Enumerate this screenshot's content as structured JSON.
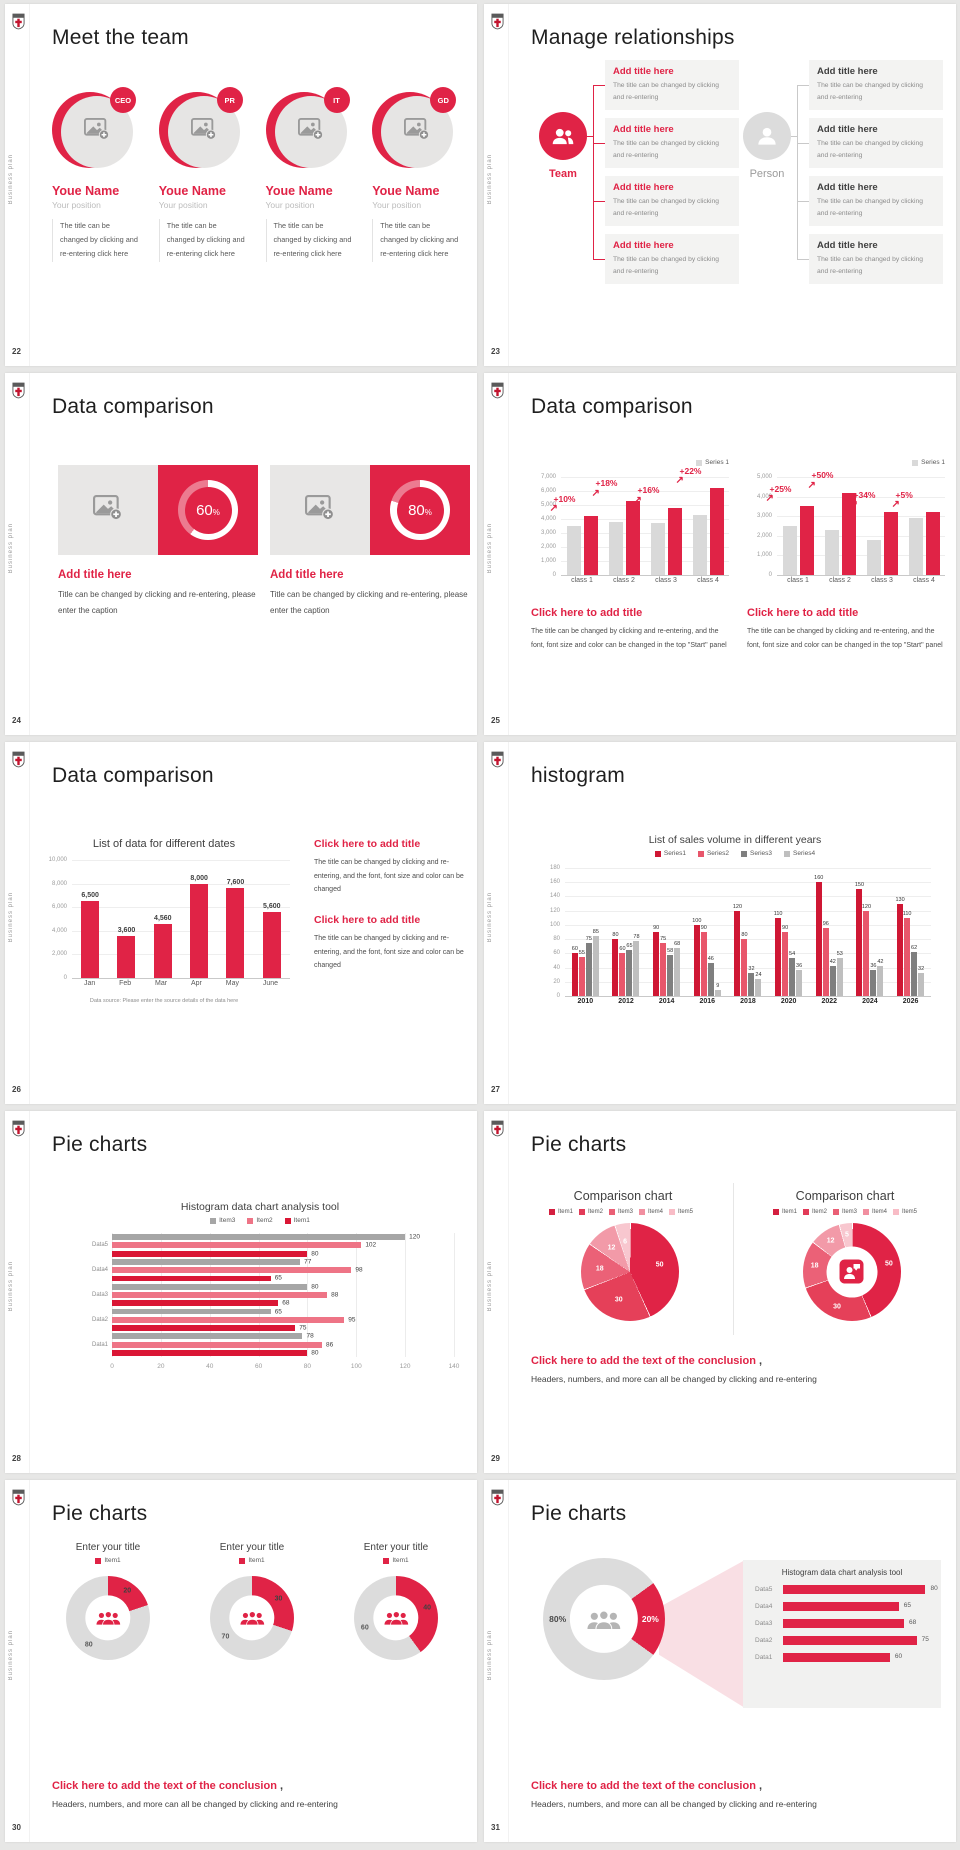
{
  "brand": {
    "vertical_text": "Business plan"
  },
  "icons": {
    "growth_arrow": "↗"
  },
  "theme": {
    "accent": "#e02346",
    "accent_dark": "#cf1734",
    "pink": "#ee7486",
    "gray_bar": "#d9d9d9",
    "gray_dark": "#7f7f7f",
    "gray_mid": "#a6a6a6",
    "panel": "#f1f1f0",
    "beam": "#f9dfe4"
  },
  "slides": [
    {
      "page": "22",
      "title": "Meet the team",
      "members": [
        {
          "badge": "CEO",
          "name": "Youe Name",
          "position": "Your position",
          "desc": "The title can be changed by clicking and re-entering click here"
        },
        {
          "badge": "PR",
          "name": "Youe Name",
          "position": "Your position",
          "desc": "The title can be changed by clicking and re-entering click here"
        },
        {
          "badge": "IT",
          "name": "Youe Name",
          "position": "Your position",
          "desc": "The title can be changed by clicking and re-entering click here"
        },
        {
          "badge": "GD",
          "name": "Youe Name",
          "position": "Your position",
          "desc": "The title can be changed by clicking and re-entering click here"
        }
      ]
    },
    {
      "page": "23",
      "title": "Manage relationships",
      "team_label": "Team",
      "person_label": "Person",
      "box_title": "Add title here",
      "box_text": "The title can be changed by clicking and re-entering"
    },
    {
      "page": "24",
      "title": "Data comparison",
      "panels": [
        {
          "percent": "60",
          "unit": "%",
          "title": "Add title here",
          "caption": "Title can be changed by clicking and re-entering, please enter the caption"
        },
        {
          "percent": "80",
          "unit": "%",
          "title": "Add title here",
          "caption": "Title can be changed by clicking and re-entering, please enter the caption"
        }
      ]
    },
    {
      "page": "25",
      "title": "Data comparison",
      "caption_title": "Click here to add title",
      "caption": "The title can be changed by clicking and re-entering, and the font, font size and color can be changed in the top \"Start\" panel"
    },
    {
      "page": "26",
      "title": "Data comparison",
      "blocks": [
        {
          "title": "Click here to add title",
          "text": "The title can be changed by clicking and re-entering, and the font, font size and color can be changed"
        },
        {
          "title": "Click here to add title",
          "text": "The title can be changed by clicking and re-entering, and the font, font size and color can be changed"
        }
      ]
    },
    {
      "page": "27",
      "title": "histogram"
    },
    {
      "page": "28",
      "title": "Pie charts"
    },
    {
      "page": "29",
      "title": "Pie charts",
      "conclusion_title": "Click here to add the text of the conclusion",
      "conclusion_comma": ",",
      "conclusion_text": "Headers, numbers, and more can all be changed by clicking and re-entering"
    },
    {
      "page": "30",
      "title": "Pie charts",
      "conclusion_title": "Click here to add the text of the conclusion",
      "conclusion_comma": ",",
      "conclusion_text": "Headers, numbers, and more can all be changed by clicking and re-entering"
    },
    {
      "page": "31",
      "title": "Pie charts",
      "conclusion_title": "Click here to add the text of the conclusion",
      "conclusion_comma": ",",
      "conclusion_text": "Headers, numbers, and more can all be changed by clicking and re-entering"
    }
  ],
  "chart_data": [
    {
      "type": "bar",
      "slide": "25-left",
      "title": "",
      "legend": [
        {
          "label": "Series 1",
          "color": "#d9d9d9"
        }
      ],
      "categories": [
        "class 1",
        "class 2",
        "class 3",
        "class 4"
      ],
      "series": [
        {
          "name": "base",
          "color": "#d9d9d9",
          "values": [
            3500,
            3800,
            3700,
            4300
          ]
        },
        {
          "name": "Series 1",
          "color": "#e02346",
          "values": [
            4200,
            5300,
            4800,
            6200
          ]
        }
      ],
      "growth": [
        "+10%",
        "+18%",
        "+16%",
        "+22%"
      ],
      "ylim": [
        0,
        7000
      ],
      "yticks": [
        "7,000",
        "6,000",
        "5,000",
        "4,000",
        "3,000",
        "2,000",
        "1,000",
        "0"
      ]
    },
    {
      "type": "bar",
      "slide": "25-right",
      "title": "",
      "legend": [
        {
          "label": "Series 1",
          "color": "#d9d9d9"
        }
      ],
      "categories": [
        "class 1",
        "class 2",
        "class 3",
        "class 4"
      ],
      "series": [
        {
          "name": "base",
          "color": "#d9d9d9",
          "values": [
            2500,
            2300,
            1800,
            2900
          ]
        },
        {
          "name": "Series 1",
          "color": "#e02346",
          "values": [
            3500,
            4200,
            3200,
            3200
          ]
        }
      ],
      "growth": [
        "+25%",
        "+50%",
        "+34%",
        "+5%"
      ],
      "ylim": [
        0,
        5000
      ],
      "yticks": [
        "5,000",
        "4,000",
        "3,000",
        "2,000",
        "1,000",
        "0"
      ]
    },
    {
      "type": "bar",
      "slide": "26",
      "title": "List of data for different dates",
      "categories": [
        "Jan",
        "Feb",
        "Mar",
        "Apr",
        "May",
        "June"
      ],
      "series": [
        {
          "name": "data",
          "color": "#e02346",
          "values": [
            6500,
            3600,
            4560,
            8000,
            7600,
            5600
          ],
          "labels": [
            "6,500",
            "3,600",
            "4,560",
            "8,000",
            "7,600",
            "5,600"
          ]
        }
      ],
      "ylim": [
        0,
        10000
      ],
      "yticks": [
        "10,000",
        "8,000",
        "6,000",
        "4,000",
        "2,000",
        "0"
      ],
      "footnote": "Data source: Please enter the source details of the data here"
    },
    {
      "type": "bar",
      "slide": "27",
      "title": "List of sales volume in different years",
      "legend": [
        {
          "label": "Series1",
          "color": "#cf1734"
        },
        {
          "label": "Series2",
          "color": "#e8566b"
        },
        {
          "label": "Series3",
          "color": "#7f7f7f"
        },
        {
          "label": "Series4",
          "color": "#bfbfbf"
        }
      ],
      "categories": [
        "2010",
        "2012",
        "2014",
        "2016",
        "2018",
        "2020",
        "2022",
        "2024",
        "2026"
      ],
      "series": [
        {
          "name": "Series1",
          "color": "#cf1734",
          "values": [
            60,
            80,
            90,
            100,
            120,
            110,
            160,
            150,
            130
          ]
        },
        {
          "name": "Series2",
          "color": "#e8566b",
          "values": [
            55,
            60,
            75,
            90,
            80,
            90,
            96,
            120,
            110
          ]
        },
        {
          "name": "Series3",
          "color": "#7f7f7f",
          "values": [
            75,
            65,
            58,
            46,
            32,
            54,
            42,
            36,
            62
          ]
        },
        {
          "name": "Series4",
          "color": "#bfbfbf",
          "values": [
            85,
            78,
            68,
            9,
            24,
            36,
            53,
            42,
            32
          ]
        }
      ],
      "show_values": true,
      "ylim": [
        0,
        180
      ],
      "yticks": [
        "180",
        "160",
        "140",
        "120",
        "100",
        "80",
        "60",
        "40",
        "20",
        "0"
      ]
    },
    {
      "type": "hbar",
      "slide": "28",
      "title": "Histogram data chart analysis tool",
      "legend": [
        {
          "label": "Item3",
          "color": "#a6a6a6"
        },
        {
          "label": "Item2",
          "color": "#ee7486"
        },
        {
          "label": "Item1",
          "color": "#da1635"
        }
      ],
      "series_colors": [
        "#a6a6a6",
        "#ee7486",
        "#da1635"
      ],
      "rows": [
        {
          "label": "Data5",
          "values": [
            120,
            102,
            80
          ]
        },
        {
          "label": "Data4",
          "values": [
            77,
            98,
            65
          ]
        },
        {
          "label": "Data3",
          "values": [
            80,
            88,
            68
          ]
        },
        {
          "label": "Data2",
          "values": [
            65,
            95,
            75
          ]
        },
        {
          "label": "Data1",
          "values": [
            78,
            86,
            80
          ]
        }
      ],
      "xlim": [
        0,
        140
      ],
      "xticks": [
        "0",
        "20",
        "40",
        "60",
        "80",
        "100",
        "120",
        "140"
      ]
    },
    {
      "type": "pie",
      "slide": "29-left",
      "title": "Comparison chart",
      "legend": [
        {
          "label": "Item1",
          "color": "#d41f3f"
        },
        {
          "label": "Item2",
          "color": "#e23b58"
        },
        {
          "label": "Item3",
          "color": "#ea5f75"
        },
        {
          "label": "Item4",
          "color": "#f18fa0"
        },
        {
          "label": "Item5",
          "color": "#f8bcc6"
        }
      ],
      "values": [
        50,
        30,
        18,
        12,
        6
      ],
      "labels": [
        "50",
        "30",
        "18",
        "12",
        "6"
      ],
      "colors": [
        "#e02346",
        "#e54059",
        "#eb6177",
        "#f29aa8",
        "#f8c7cf"
      ],
      "separators": true,
      "label_r": 62
    },
    {
      "type": "donut",
      "slide": "29-right",
      "title": "Comparison chart",
      "legend": [
        {
          "label": "Item1",
          "color": "#d41f3f"
        },
        {
          "label": "Item2",
          "color": "#e23b58"
        },
        {
          "label": "Item3",
          "color": "#ea5f75"
        },
        {
          "label": "Item4",
          "color": "#f18fa0"
        },
        {
          "label": "Item5",
          "color": "#f8bcc6"
        }
      ],
      "values": [
        50,
        30,
        18,
        12,
        5
      ],
      "labels": [
        "50",
        "30",
        "18",
        "12",
        "5"
      ],
      "colors": [
        "#e02346",
        "#e54059",
        "#eb6177",
        "#f29aa8",
        "#f8c7cf"
      ],
      "separators": true,
      "label_r": 77,
      "hole": 52,
      "center_icon": "person-chat"
    },
    {
      "type": "donut",
      "slide": "30-1",
      "title": "Enter your title",
      "legend": [
        {
          "label": "Item1",
          "color": "#e02346"
        }
      ],
      "values": [
        20,
        80
      ],
      "labels": [
        "20",
        "80"
      ],
      "colors": [
        "#e02346",
        "#dcdcdc"
      ],
      "label_colors": [
        "#404040",
        "#595959"
      ],
      "label_r": 78,
      "hole": 54,
      "center_icon": "team-red"
    },
    {
      "type": "donut",
      "slide": "30-2",
      "title": "Enter your title",
      "legend": [
        {
          "label": "Item1",
          "color": "#e02346"
        }
      ],
      "values": [
        30,
        70
      ],
      "labels": [
        "30",
        "70"
      ],
      "colors": [
        "#e02346",
        "#dcdcdc"
      ],
      "label_colors": [
        "#404040",
        "#595959"
      ],
      "label_r": 78,
      "hole": 54,
      "center_icon": "team-red"
    },
    {
      "type": "donut",
      "slide": "30-3",
      "title": "Enter your title",
      "legend": [
        {
          "label": "Item1",
          "color": "#e02346"
        }
      ],
      "values": [
        40,
        60
      ],
      "labels": [
        "40",
        "60"
      ],
      "colors": [
        "#e02346",
        "#dcdcdc"
      ],
      "label_colors": [
        "#404040",
        "#595959"
      ],
      "label_r": 78,
      "hole": 54,
      "center_icon": "team-red"
    },
    {
      "type": "donut",
      "slide": "31",
      "title": "",
      "values": [
        20,
        80
      ],
      "labels": [
        "20%",
        "80%"
      ],
      "colors": [
        "#e02346",
        "#dcdcdc"
      ],
      "label_colors": [
        "#ffffff",
        "#4a4a4a"
      ],
      "start_angle": 54,
      "label_r": 76,
      "label_size": 8.5,
      "hole": 56,
      "center_icon": "team-gray"
    },
    {
      "type": "panel-bars",
      "slide": "31-panel",
      "title": "Histogram data chart analysis tool",
      "rows": [
        {
          "label": "Data5",
          "value": 80
        },
        {
          "label": "Data4",
          "value": 65
        },
        {
          "label": "Data3",
          "value": 68
        },
        {
          "label": "Data2",
          "value": 75
        },
        {
          "label": "Data1",
          "value": 60
        }
      ],
      "xmax": 82,
      "bar_color": "#e02346"
    }
  ]
}
